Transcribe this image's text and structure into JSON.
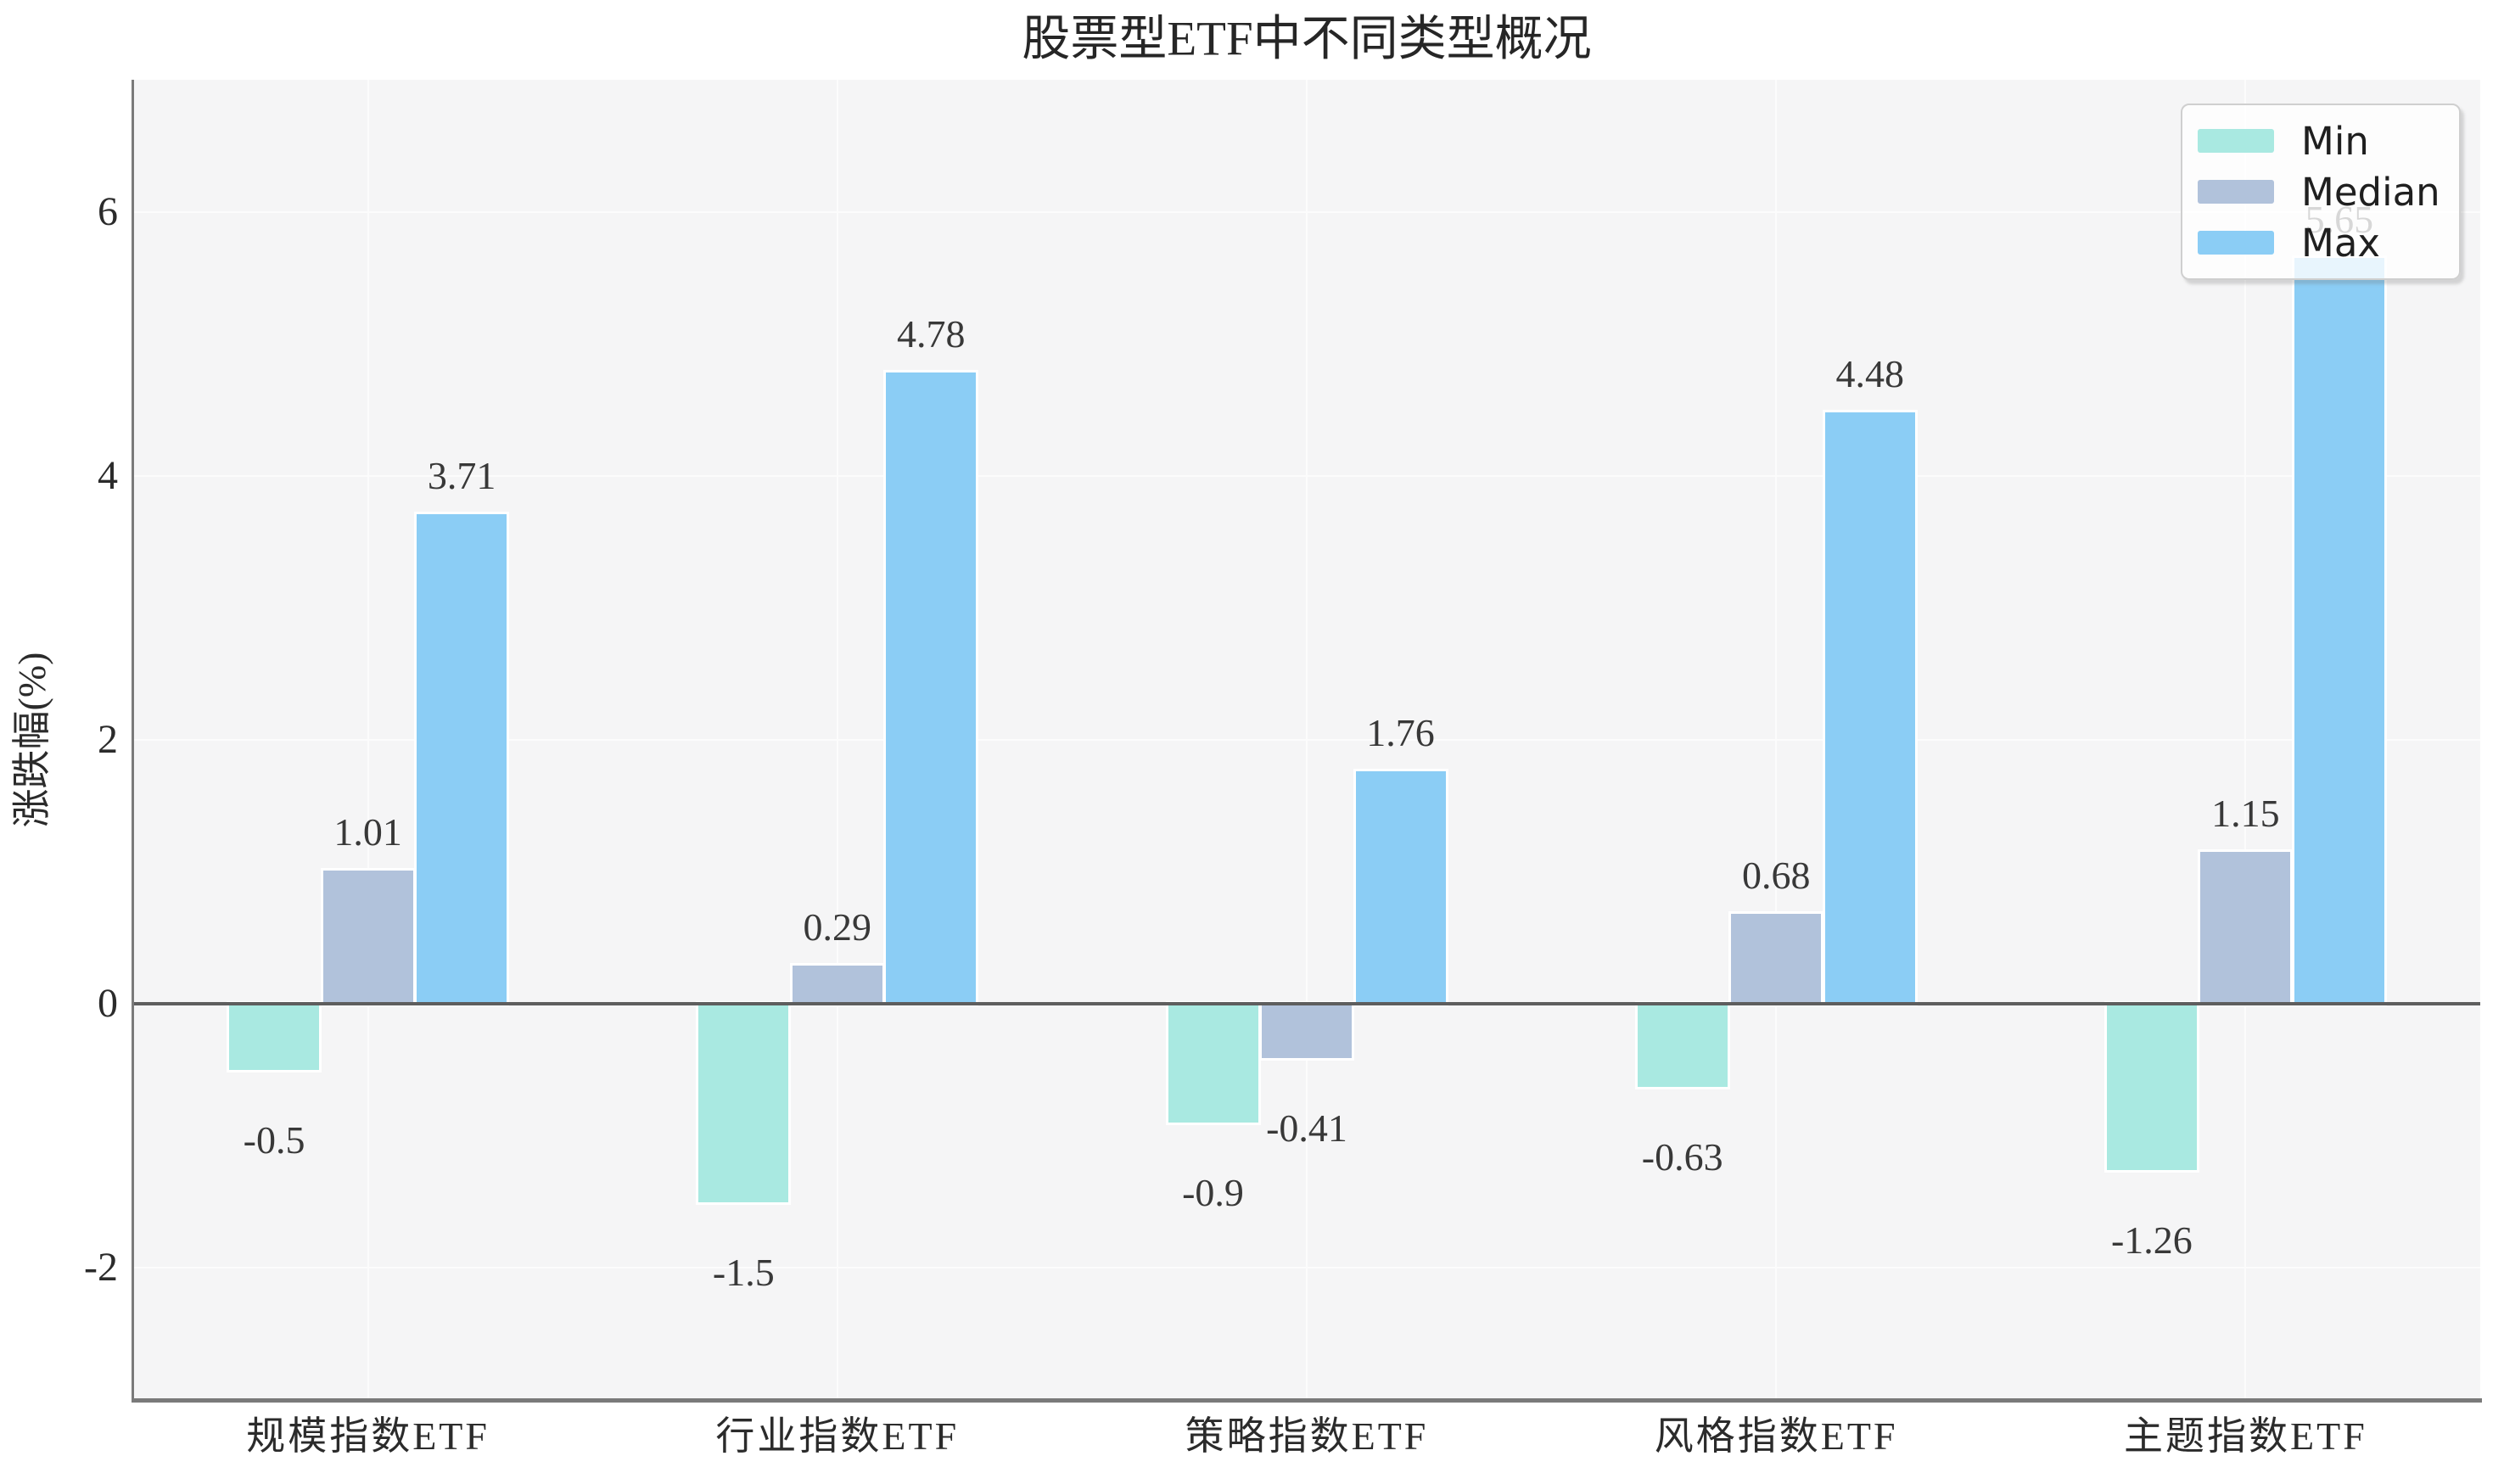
{
  "chart_data": {
    "type": "bar",
    "title": "股票型ETF中不同类型概况",
    "ylabel": "涨跌幅(%)",
    "xlabel": "",
    "ylim": [
      -3,
      7
    ],
    "yticks": [
      "6",
      "4",
      "2",
      "0",
      "-2"
    ],
    "grid": true,
    "legend_position": "upper right",
    "categories": [
      "规模指数ETF",
      "行业指数ETF",
      "策略指数ETF",
      "风格指数ETF",
      "主题指数ETF"
    ],
    "series": [
      {
        "name": "Min",
        "color": "#A9E9E1",
        "values": [
          -0.5,
          -1.5,
          -0.9,
          -0.63,
          -1.26
        ],
        "labels": [
          "-0.5",
          "-1.5",
          "-0.9",
          "-0.63",
          "-1.26"
        ]
      },
      {
        "name": "Median",
        "color": "#B1C2DB",
        "values": [
          1.01,
          0.29,
          -0.41,
          0.68,
          1.15
        ],
        "labels": [
          "1.01",
          "0.29",
          "-0.41",
          "0.68",
          "1.15"
        ]
      },
      {
        "name": "Max",
        "color": "#8BCDF5",
        "values": [
          3.71,
          4.78,
          1.76,
          4.48,
          5.65
        ],
        "labels": [
          "3.71",
          "4.78",
          "1.76",
          "4.48",
          "5.65"
        ]
      }
    ],
    "colors": {
      "plot_bg": "#F5F5F6",
      "grid": "#FCFCFC",
      "zero_line": "#5E5E5E",
      "spine": "#7A7A7A",
      "tick_text": "#2B2B2B",
      "value_text": "#383838"
    }
  }
}
